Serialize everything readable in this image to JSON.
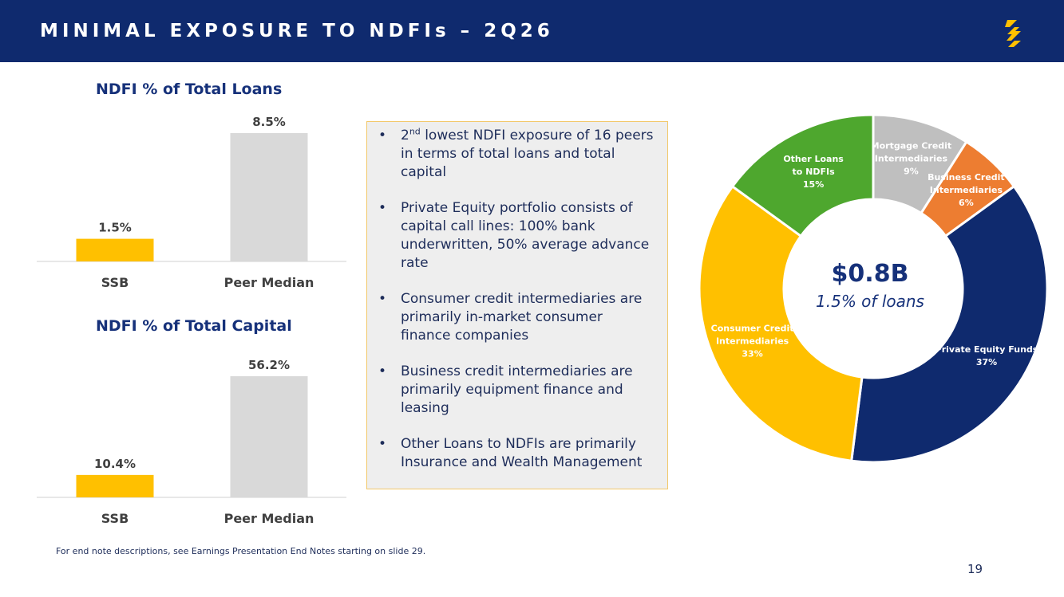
{
  "header": {
    "title": "MINIMAL EXPOSURE TO NDFIs – 2Q26"
  },
  "colors": {
    "navy": "#0f2a6e",
    "gold": "#ffc000",
    "gray": "#d9d9d9",
    "orange": "#ed7d31",
    "green": "#4ea72e",
    "mortgage_gray": "#bfbfbf"
  },
  "logo": {
    "icon": "ssb-s-logo-icon"
  },
  "chart_data": [
    {
      "type": "bar",
      "title": "NDFI % of Total Loans",
      "categories": [
        "SSB",
        "Peer Median"
      ],
      "values": [
        1.5,
        8.5
      ],
      "labels": [
        "1.5%",
        "8.5%"
      ],
      "bar_colors": [
        "#ffc000",
        "#d9d9d9"
      ],
      "ylim": [
        0,
        8.5
      ]
    },
    {
      "type": "bar",
      "title": "NDFI % of Total Capital",
      "categories": [
        "SSB",
        "Peer Median"
      ],
      "values": [
        10.4,
        56.2
      ],
      "labels": [
        "10.4%",
        "56.2%"
      ],
      "bar_colors": [
        "#ffc000",
        "#d9d9d9"
      ],
      "ylim": [
        0,
        56.2
      ]
    },
    {
      "type": "pie",
      "donut": true,
      "center_value": "$0.8B",
      "center_subtitle": "1.5% of loans",
      "slices": [
        {
          "label_lines": [
            "Mortgage Credit",
            "Intermediaries"
          ],
          "pct_label": "9%",
          "value": 9,
          "color": "#bfbfbf"
        },
        {
          "label_lines": [
            "Business Credit",
            "Intermediaries"
          ],
          "pct_label": "6%",
          "value": 6,
          "color": "#ed7d31"
        },
        {
          "label_lines": [
            "Private Equity Funds"
          ],
          "pct_label": "37%",
          "value": 37,
          "color": "#0f2a6e"
        },
        {
          "label_lines": [
            "Consumer Credit",
            "Intermediaries"
          ],
          "pct_label": "33%",
          "value": 33,
          "color": "#ffc000"
        },
        {
          "label_lines": [
            "Other Loans",
            "to NDFIs"
          ],
          "pct_label": "15%",
          "value": 15,
          "color": "#4ea72e"
        }
      ]
    }
  ],
  "bullets": [
    {
      "pre": "2",
      "sup": "nd",
      "text": " lowest NDFI exposure of 16 peers in terms of total loans and total capital"
    },
    {
      "pre": "",
      "sup": "",
      "text": "Private Equity portfolio consists of capital call lines: 100% bank underwritten, 50% average advance rate"
    },
    {
      "pre": "",
      "sup": "",
      "text": "Consumer credit intermediaries are primarily in-market consumer finance companies"
    },
    {
      "pre": "",
      "sup": "",
      "text": "Business credit intermediaries are primarily equipment finance and leasing"
    },
    {
      "pre": "",
      "sup": "",
      "text": "Other Loans to NDFIs are primarily Insurance and Wealth Management"
    }
  ],
  "footnote": "For end note descriptions, see Earnings Presentation End Notes starting on slide 29.",
  "page_number": "19"
}
